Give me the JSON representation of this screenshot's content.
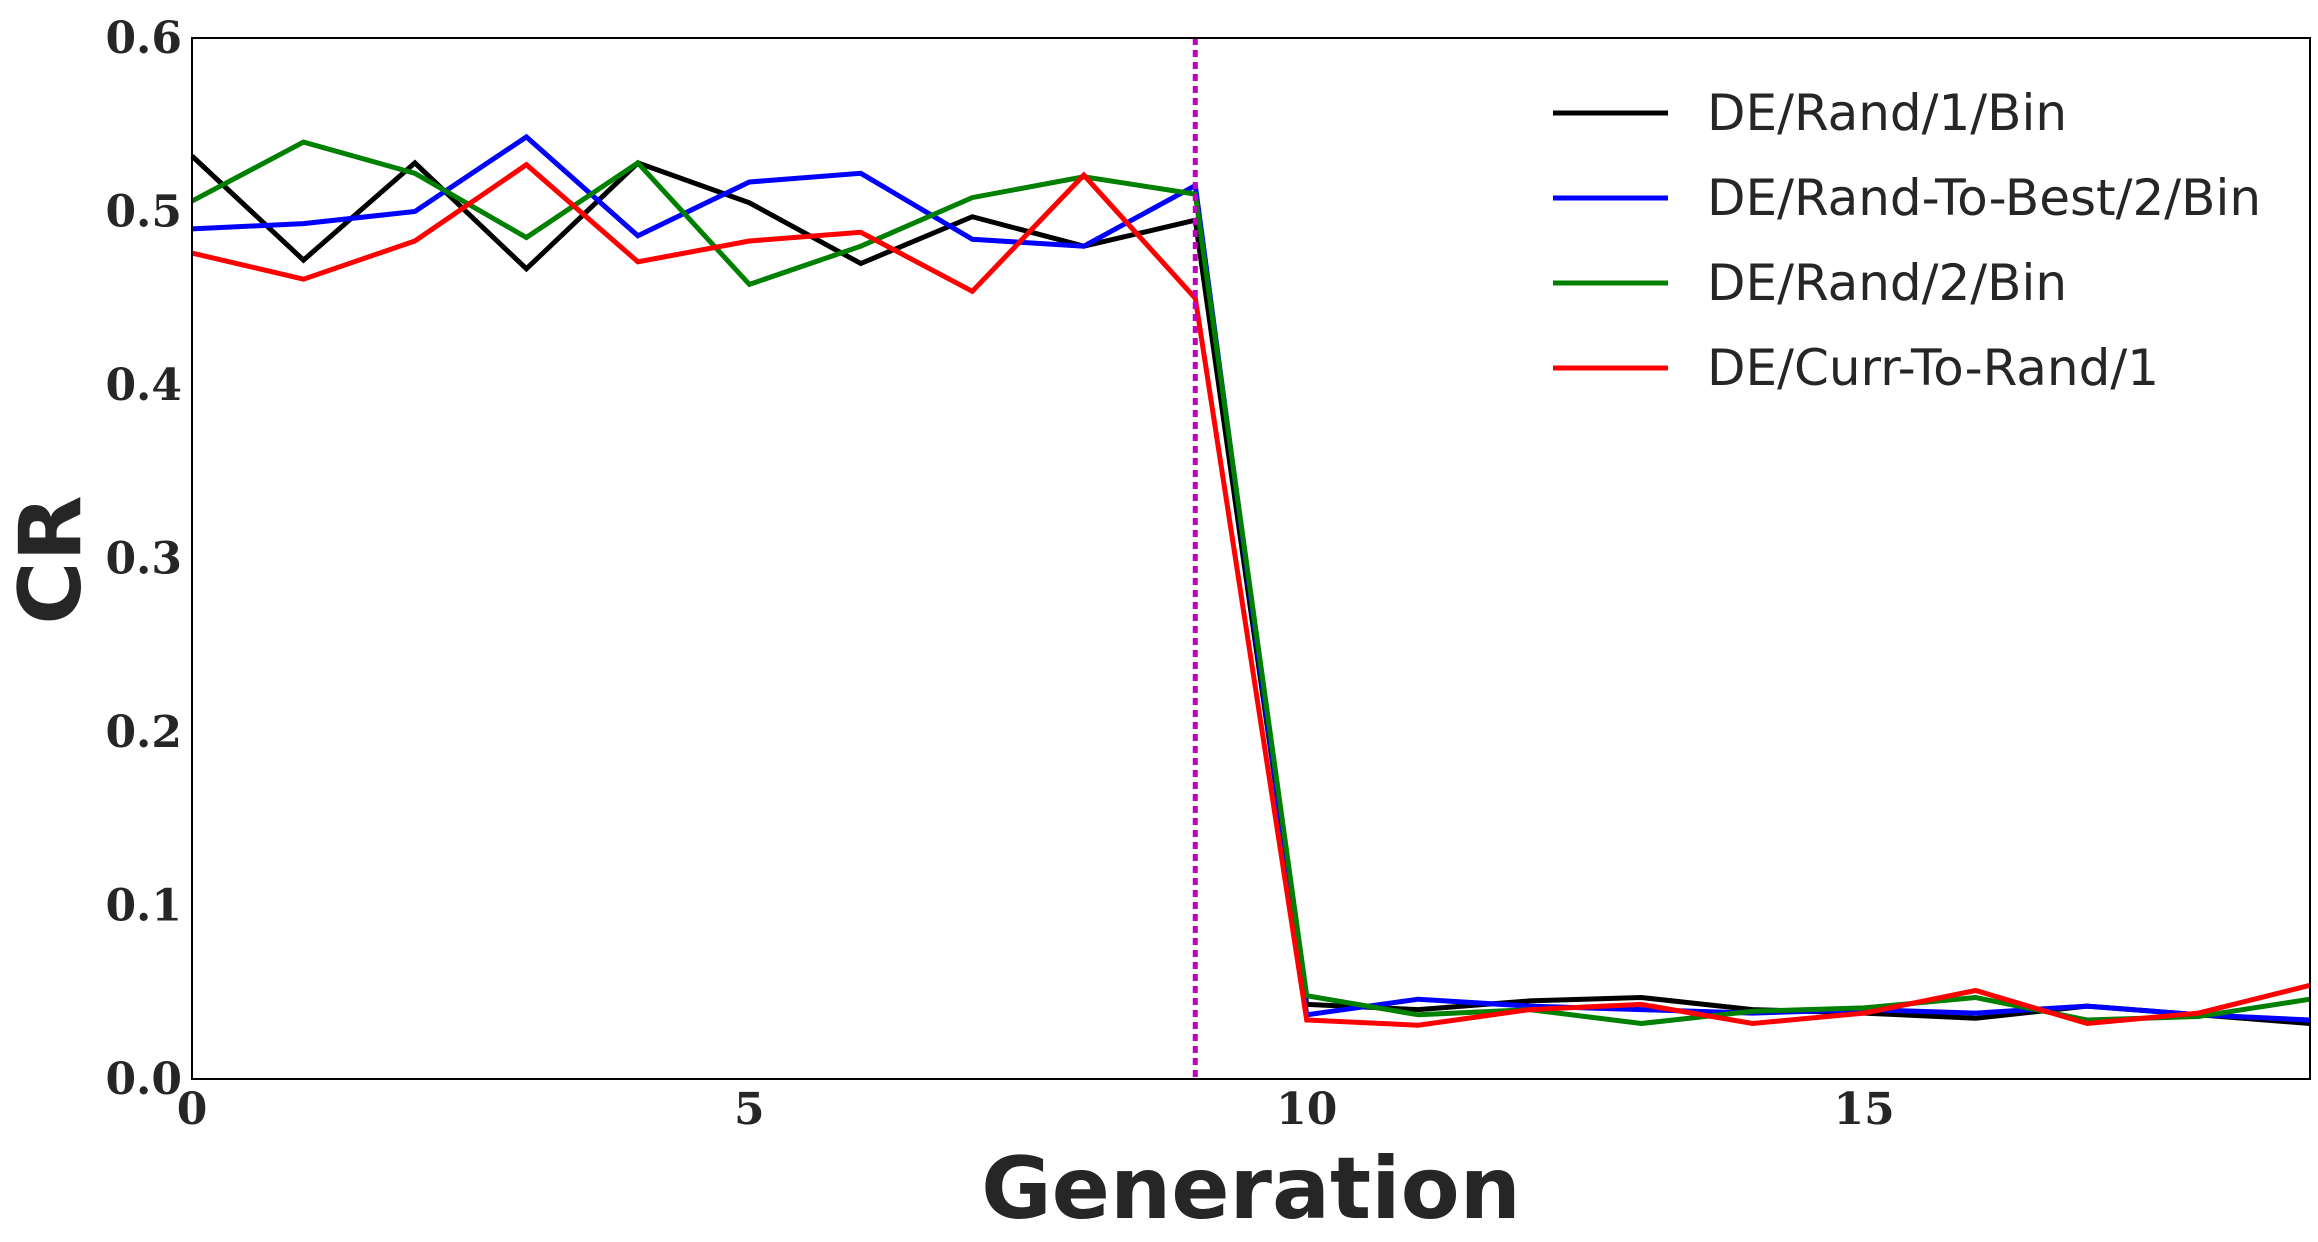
{
  "chart_data": {
    "type": "line",
    "title": "",
    "xlabel": "Generation",
    "ylabel": "CR",
    "xlim": [
      0,
      19
    ],
    "ylim": [
      0,
      0.6
    ],
    "xticks": [
      0,
      5,
      10,
      15
    ],
    "xtick_labels": [
      "0",
      "5",
      "10",
      "15"
    ],
    "yticks": [
      0.0,
      0.1,
      0.2,
      0.3,
      0.4,
      0.5,
      0.6
    ],
    "ytick_labels": [
      "0.0",
      "0.1",
      "0.2",
      "0.3",
      "0.4",
      "0.5",
      "0.6"
    ],
    "grid": false,
    "legend_position": "top-right",
    "vertical_marker": {
      "x": 9,
      "color": "#bf00bf",
      "style": "dotted"
    },
    "x": [
      0,
      1,
      2,
      3,
      4,
      5,
      6,
      7,
      8,
      9,
      10,
      11,
      12,
      13,
      14,
      15,
      16,
      17,
      18,
      19
    ],
    "series": [
      {
        "name": "DE/Rand/1/Bin",
        "color": "#000000",
        "values": [
          0.532,
          0.472,
          0.528,
          0.467,
          0.528,
          0.505,
          0.47,
          0.497,
          0.48,
          0.495,
          0.043,
          0.04,
          0.045,
          0.047,
          0.04,
          0.038,
          0.035,
          0.042,
          0.037,
          0.032
        ]
      },
      {
        "name": "DE/Rand-To-Best/2/Bin",
        "color": "#0000ff",
        "values": [
          0.49,
          0.493,
          0.5,
          0.543,
          0.486,
          0.517,
          0.522,
          0.484,
          0.48,
          0.515,
          0.037,
          0.046,
          0.042,
          0.04,
          0.038,
          0.04,
          0.038,
          0.042,
          0.037,
          0.034
        ]
      },
      {
        "name": "DE/Rand/2/Bin",
        "color": "#008000",
        "values": [
          0.506,
          0.54,
          0.522,
          0.485,
          0.528,
          0.458,
          0.48,
          0.508,
          0.52,
          0.51,
          0.048,
          0.037,
          0.04,
          0.032,
          0.039,
          0.041,
          0.047,
          0.034,
          0.036,
          0.046
        ]
      },
      {
        "name": "DE/Curr-To-Rand/1",
        "color": "#ff0000",
        "values": [
          0.476,
          0.461,
          0.483,
          0.527,
          0.471,
          0.483,
          0.488,
          0.454,
          0.521,
          0.45,
          0.034,
          0.031,
          0.04,
          0.043,
          0.032,
          0.038,
          0.051,
          0.032,
          0.038,
          0.054
        ]
      }
    ]
  }
}
